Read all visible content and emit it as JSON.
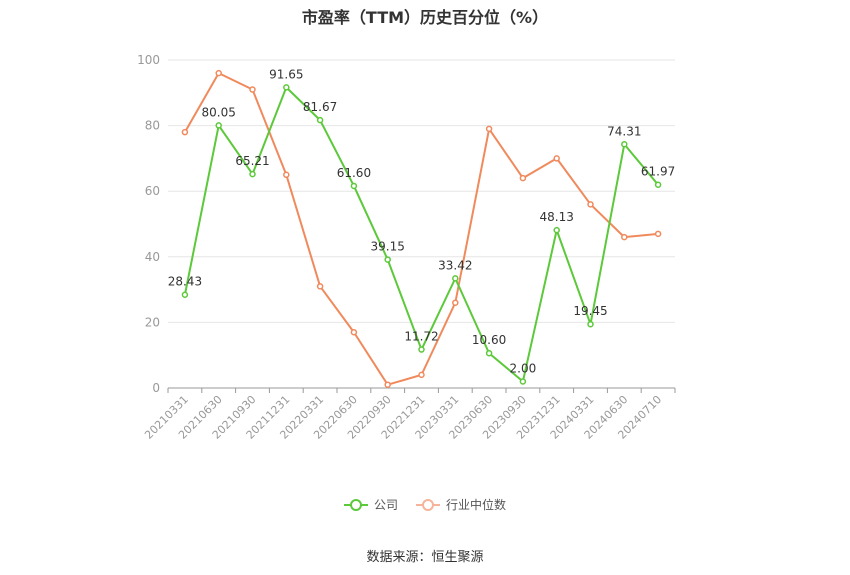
{
  "chart_data": {
    "type": "line",
    "title": "市盈率（TTM）历史百分位（%）",
    "categories": [
      "20210331",
      "20210630",
      "20210930",
      "20211231",
      "20220331",
      "20220630",
      "20220930",
      "20221231",
      "20230331",
      "20230630",
      "20230930",
      "20231231",
      "20240331",
      "20240630",
      "20240710"
    ],
    "ylim": [
      0,
      100
    ],
    "yticks": [
      0,
      20,
      40,
      60,
      80,
      100
    ],
    "grid": true,
    "legend_position": "bottom",
    "series": [
      {
        "name": "公司",
        "color": "#5cc93a",
        "values": [
          28.43,
          80.05,
          65.21,
          91.65,
          81.67,
          61.6,
          39.15,
          11.72,
          33.42,
          10.6,
          2.0,
          48.13,
          19.45,
          74.31,
          61.97
        ],
        "labels": [
          "28.43",
          "80.05",
          "65.21",
          "91.65",
          "81.67",
          "61.60",
          "39.15",
          "11.72",
          "33.42",
          "10.60",
          "2.00",
          "48.13",
          "19.45",
          "74.31",
          "61.97"
        ]
      },
      {
        "name": "行业中位数",
        "color": "#f08a5d",
        "values": [
          78,
          96,
          91,
          65,
          31,
          17,
          1,
          4,
          26,
          79,
          64,
          70,
          56,
          46,
          47
        ]
      }
    ]
  },
  "source": "数据来源：恒生聚源"
}
